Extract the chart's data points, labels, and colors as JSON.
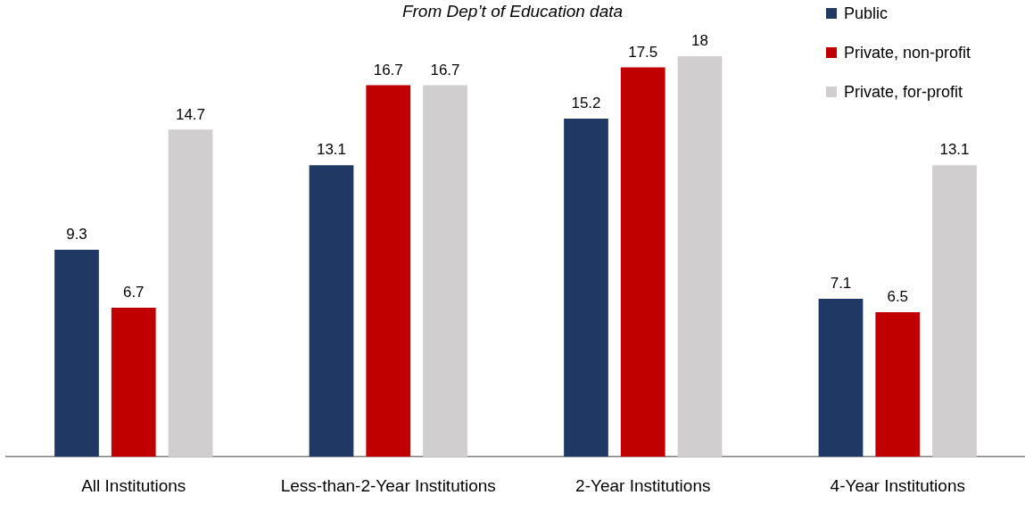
{
  "chart_data": {
    "type": "bar",
    "title": "From Dep’t of Education data",
    "categories": [
      "All Institutions",
      "Less-than-2-Year Institutions",
      "2-Year Institutions",
      "4-Year Institutions"
    ],
    "series": [
      {
        "name": "Public",
        "color": "#203864",
        "values": [
          9.3,
          13.1,
          15.2,
          7.1
        ]
      },
      {
        "name": "Private, non-profit",
        "color": "#c00000",
        "values": [
          6.7,
          16.7,
          17.5,
          6.5
        ]
      },
      {
        "name": "Private, for-profit",
        "color": "#d0cece",
        "values": [
          14.7,
          16.7,
          18,
          13.1
        ]
      }
    ],
    "tick_labels": "x",
    "grid": false,
    "legend": "top right",
    "data_labels": true
  }
}
